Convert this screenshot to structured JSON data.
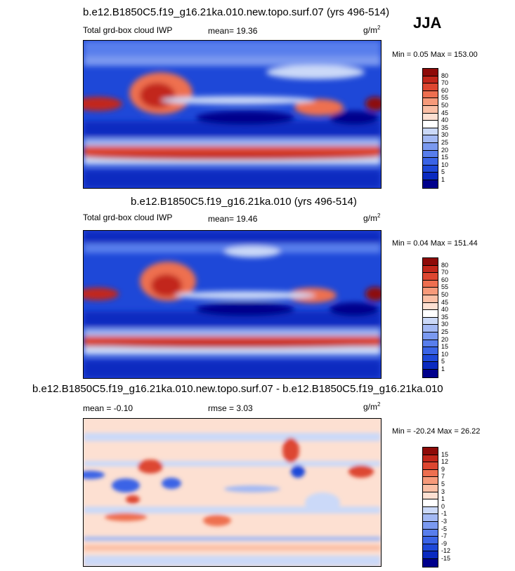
{
  "season": "JJA",
  "unit_base": "g/m",
  "unit_exp": "2",
  "panels": [
    {
      "title": "b.e12.B1850C5.f19_g16.21ka.010.new.topo.surf.07 (yrs 496-514)",
      "subtitle": "Total grd-box cloud IWP",
      "stat": "mean=  19.36",
      "minmax": "Min =   0.05 Max = 153.00"
    },
    {
      "title": "b.e12.B1850C5.f19_g16.21ka.010 (yrs 496-514)",
      "subtitle": "Total grd-box cloud IWP",
      "stat": "mean=  19.46",
      "minmax": "Min =   0.04 Max = 151.44"
    },
    {
      "title": "b.e12.B1850C5.f19_g16.21ka.010.new.topo.surf.07 - b.e12.B1850C5.f19_g16.21ka.010",
      "subtitle": "mean =  -0.10",
      "stat": "rmse =    3.03",
      "minmax": "Min = -20.24 Max =  26.22"
    }
  ],
  "chart_data": [
    {
      "type": "heatmap",
      "title": "b.e12.B1850C5.f19_g16.21ka.010.new.topo.surf.07 (yrs 496-514)",
      "variable": "Total grd-box cloud IWP",
      "units": "g/m^2",
      "mean": 19.36,
      "min": 0.05,
      "max": 153.0,
      "contour_levels": [
        "1",
        "5",
        "10",
        "15",
        "20",
        "25",
        "30",
        "35",
        "40",
        "45",
        "50",
        "55",
        "60",
        "70",
        "80"
      ],
      "colors": [
        "#00008c",
        "#0a2ac0",
        "#1e48d8",
        "#3a64e6",
        "#587eec",
        "#7a99f0",
        "#a3b9f4",
        "#cbd9f8",
        "#ffffff",
        "#fde0d2",
        "#fbbfa5",
        "#f79a7a",
        "#ee6f50",
        "#dd4630",
        "#c2261a",
        "#8e0a08"
      ]
    },
    {
      "type": "heatmap",
      "title": "b.e12.B1850C5.f19_g16.21ka.010 (yrs 496-514)",
      "variable": "Total grd-box cloud IWP",
      "units": "g/m^2",
      "mean": 19.46,
      "min": 0.04,
      "max": 151.44,
      "contour_levels": [
        "1",
        "5",
        "10",
        "15",
        "20",
        "25",
        "30",
        "35",
        "40",
        "45",
        "50",
        "55",
        "60",
        "70",
        "80"
      ],
      "colors": [
        "#00008c",
        "#0a2ac0",
        "#1e48d8",
        "#3a64e6",
        "#587eec",
        "#7a99f0",
        "#a3b9f4",
        "#cbd9f8",
        "#ffffff",
        "#fde0d2",
        "#fbbfa5",
        "#f79a7a",
        "#ee6f50",
        "#dd4630",
        "#c2261a",
        "#8e0a08"
      ]
    },
    {
      "type": "heatmap",
      "title": "b.e12.B1850C5.f19_g16.21ka.010.new.topo.surf.07 - b.e12.B1850C5.f19_g16.21ka.010",
      "units": "g/m^2",
      "mean": -0.1,
      "rmse": 3.03,
      "min": -20.24,
      "max": 26.22,
      "contour_levels": [
        "-15",
        "-12",
        "-9",
        "-7",
        "-5",
        "-3",
        "-1",
        "0",
        "1",
        "3",
        "5",
        "7",
        "9",
        "12",
        "15"
      ],
      "colors": [
        "#00008c",
        "#0a2ac0",
        "#1e48d8",
        "#3a64e6",
        "#587eec",
        "#7a99f0",
        "#a3b9f4",
        "#cbd9f8",
        "#ffffff",
        "#fde0d2",
        "#fbbfa5",
        "#f79a7a",
        "#ee6f50",
        "#dd4630",
        "#c2261a",
        "#8e0a08"
      ]
    }
  ]
}
